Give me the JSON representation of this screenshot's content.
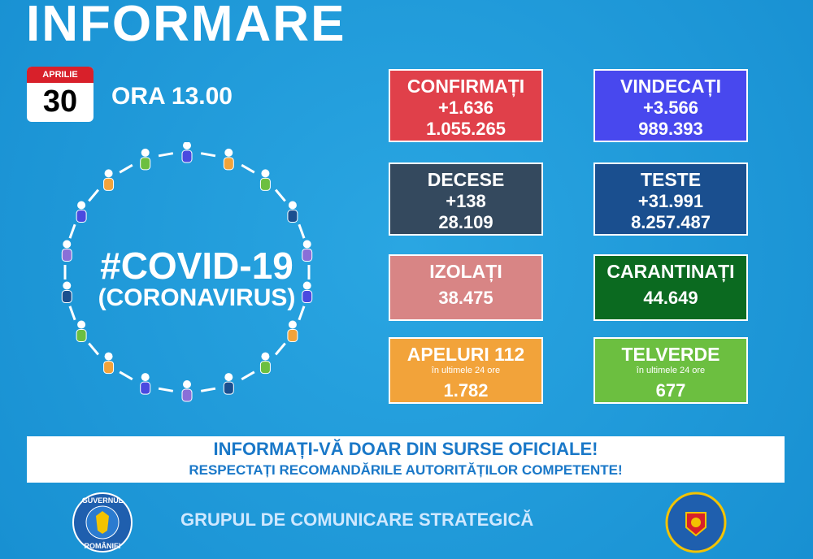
{
  "header": {
    "title": "INFORMARE",
    "calendar": {
      "month": "APRILIE",
      "day": "30"
    },
    "time": "ORA 13.00"
  },
  "hero": {
    "hashtag": "#COVID-19",
    "subtitle": "(CORONAVIRUS)"
  },
  "cards": [
    {
      "title": "CONFIRMAȚI",
      "change": "+1.636",
      "total": "1.055.265"
    },
    {
      "title": "VINDECAȚI",
      "change": "+3.566",
      "total": "989.393"
    },
    {
      "title": "DECESE",
      "change": "+138",
      "total": "28.109"
    },
    {
      "title": "TESTE",
      "change": "+31.991",
      "total": "8.257.487"
    },
    {
      "title": "IZOLAȚI",
      "total": "38.475"
    },
    {
      "title": "CARANTINAȚI",
      "total": "44.649"
    },
    {
      "title": "APELURI 112",
      "note": "în ultimele 24 ore",
      "total": "1.782"
    },
    {
      "title": "TELVERDE",
      "note": "în ultimele 24 ore",
      "total": "677"
    }
  ],
  "banner": {
    "line1": "INFORMAȚI-VĂ DOAR DIN SURSE OFICIALE!",
    "line2": "RESPECTAȚI RECOMANDĂRILE AUTORITĂȚILOR COMPETENTE!"
  },
  "footer": {
    "text": "GRUPUL DE COMUNICARE STRATEGICĂ",
    "left_seal": {
      "top": "GUVERNUL",
      "bottom": "ROMÂNIEI"
    }
  }
}
